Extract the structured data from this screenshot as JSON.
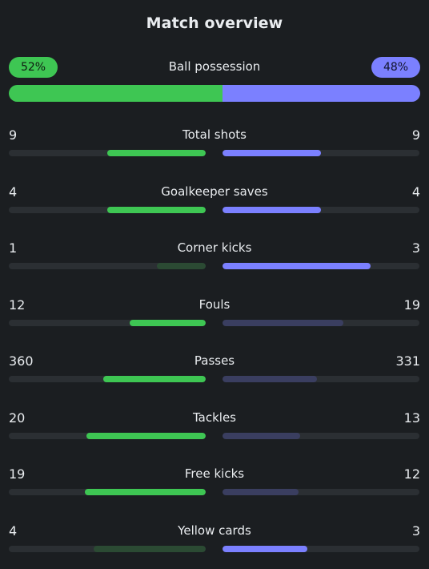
{
  "header": {
    "title": "Match overview"
  },
  "colors": {
    "home": "#3ec653",
    "home_dim": "#2b4a33",
    "away": "#7b80ff",
    "away_dim": "#3a3e60",
    "track": "#2b2f33",
    "background": "#1b1e21"
  },
  "possession": {
    "label": "Ball possession",
    "home_text": "52%",
    "away_text": "48%",
    "home_fraction": 0.52
  },
  "stats": [
    {
      "name": "Total shots",
      "home": "9",
      "away": "9",
      "home_fraction": 0.5,
      "away_fraction": 0.5,
      "home_lead": true,
      "away_lead": true
    },
    {
      "name": "Goalkeeper saves",
      "home": "4",
      "away": "4",
      "home_fraction": 0.5,
      "away_fraction": 0.5,
      "home_lead": true,
      "away_lead": true
    },
    {
      "name": "Corner kicks",
      "home": "1",
      "away": "3",
      "home_fraction": 0.25,
      "away_fraction": 0.75,
      "home_lead": false,
      "away_lead": true
    },
    {
      "name": "Fouls",
      "home": "12",
      "away": "19",
      "home_fraction": 0.387,
      "away_fraction": 0.613,
      "home_lead": true,
      "away_lead": false
    },
    {
      "name": "Passes",
      "home": "360",
      "away": "331",
      "home_fraction": 0.521,
      "away_fraction": 0.479,
      "home_lead": true,
      "away_lead": false
    },
    {
      "name": "Tackles",
      "home": "20",
      "away": "13",
      "home_fraction": 0.606,
      "away_fraction": 0.394,
      "home_lead": true,
      "away_lead": false
    },
    {
      "name": "Free kicks",
      "home": "19",
      "away": "12",
      "home_fraction": 0.613,
      "away_fraction": 0.387,
      "home_lead": true,
      "away_lead": false
    },
    {
      "name": "Yellow cards",
      "home": "4",
      "away": "3",
      "home_fraction": 0.571,
      "away_fraction": 0.429,
      "home_lead": false,
      "away_lead": true
    }
  ]
}
